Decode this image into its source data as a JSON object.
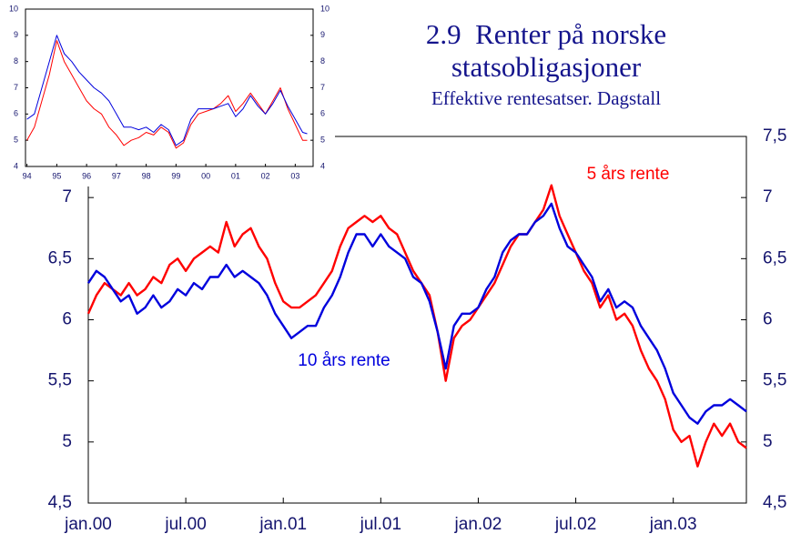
{
  "chart_data": [
    {
      "type": "line",
      "title": "2.9  Renter på norske statsobligasjoner",
      "subtitle": "Effektive rentesatser. Dagstall",
      "x": [
        0,
        0.5,
        1,
        1.5,
        2,
        2.5,
        3,
        3.5,
        4,
        4.5,
        5,
        5.5,
        6,
        6.5,
        7,
        7.5,
        8,
        8.5,
        9,
        9.5,
        10,
        10.5,
        11,
        11.5,
        12,
        12.5,
        13,
        13.5,
        14,
        14.5,
        15,
        15.5,
        16,
        16.5,
        17,
        17.5,
        18,
        18.5,
        19,
        19.5,
        20,
        20.5,
        21,
        21.5,
        22,
        22.5,
        23,
        23.5,
        24,
        24.5,
        25,
        25.5,
        26,
        26.5,
        27,
        27.5,
        28,
        28.5,
        29,
        29.5,
        30,
        30.5,
        31,
        31.5,
        32,
        32.5,
        33,
        33.5,
        34,
        34.5,
        35,
        35.5,
        36,
        36.5,
        37,
        37.5,
        38,
        38.5,
        39,
        39.5,
        40,
        40.5
      ],
      "series": [
        {
          "name": "5 års rente",
          "color": "#ff0000",
          "values": [
            6.05,
            6.2,
            6.3,
            6.25,
            6.2,
            6.3,
            6.2,
            6.25,
            6.35,
            6.3,
            6.45,
            6.5,
            6.4,
            6.5,
            6.55,
            6.6,
            6.55,
            6.8,
            6.6,
            6.7,
            6.75,
            6.6,
            6.5,
            6.3,
            6.15,
            6.1,
            6.1,
            6.15,
            6.2,
            6.3,
            6.4,
            6.6,
            6.75,
            6.8,
            6.85,
            6.8,
            6.85,
            6.75,
            6.7,
            6.55,
            6.4,
            6.3,
            6.2,
            5.9,
            5.5,
            5.85,
            5.95,
            6.0,
            6.1,
            6.2,
            6.3,
            6.45,
            6.6,
            6.7,
            6.7,
            6.8,
            6.9,
            7.1,
            6.85,
            6.7,
            6.55,
            6.4,
            6.3,
            6.1,
            6.2,
            6.0,
            6.05,
            5.95,
            5.75,
            5.6,
            5.5,
            5.35,
            5.1,
            5.0,
            5.05,
            4.8,
            5.0,
            5.15,
            5.05,
            5.15,
            5.0,
            4.95
          ]
        },
        {
          "name": "10 års rente",
          "color": "#0000dd",
          "values": [
            6.3,
            6.4,
            6.35,
            6.25,
            6.15,
            6.2,
            6.05,
            6.1,
            6.2,
            6.1,
            6.15,
            6.25,
            6.2,
            6.3,
            6.25,
            6.35,
            6.35,
            6.45,
            6.35,
            6.4,
            6.35,
            6.3,
            6.2,
            6.05,
            5.95,
            5.85,
            5.9,
            5.95,
            5.95,
            6.1,
            6.2,
            6.35,
            6.55,
            6.7,
            6.7,
            6.6,
            6.7,
            6.6,
            6.55,
            6.5,
            6.35,
            6.3,
            6.15,
            5.9,
            5.6,
            5.95,
            6.05,
            6.05,
            6.1,
            6.25,
            6.35,
            6.55,
            6.65,
            6.7,
            6.7,
            6.8,
            6.85,
            6.95,
            6.75,
            6.6,
            6.55,
            6.45,
            6.35,
            6.15,
            6.25,
            6.1,
            6.15,
            6.1,
            5.95,
            5.85,
            5.75,
            5.6,
            5.4,
            5.3,
            5.2,
            5.15,
            5.25,
            5.3,
            5.3,
            5.35,
            5.3,
            5.25
          ]
        }
      ],
      "xlim": [
        0,
        40.5
      ],
      "xticks": [
        {
          "value": 0,
          "label": "jan.00"
        },
        {
          "value": 6,
          "label": "jul.00"
        },
        {
          "value": 12,
          "label": "jan.01"
        },
        {
          "value": 18,
          "label": "jul.01"
        },
        {
          "value": 24,
          "label": "jan.02"
        },
        {
          "value": 30,
          "label": "jul.02"
        },
        {
          "value": 36,
          "label": "jan.03"
        }
      ],
      "ylim": [
        4.5,
        7.5
      ],
      "yticks": [
        {
          "value": 4.5,
          "label": "4,5"
        },
        5,
        {
          "value": 5.5,
          "label": "5,5"
        },
        6,
        {
          "value": 6.5,
          "label": "6,5"
        },
        7
      ],
      "y2lim": [
        4.5,
        7.5
      ],
      "y2ticks": [
        {
          "value": 4.5,
          "label": "4,5"
        },
        5,
        {
          "value": 5.5,
          "label": "5,5"
        },
        6,
        {
          "value": 6.5,
          "label": "6,5"
        },
        7,
        {
          "value": 7.5,
          "label": "7,5"
        }
      ],
      "annotations": [
        "5 års rente",
        "10 års rente"
      ]
    },
    {
      "type": "line",
      "x": [
        1994,
        1994.25,
        1994.5,
        1994.75,
        1995,
        1995.25,
        1995.5,
        1995.75,
        1996,
        1996.25,
        1996.5,
        1996.75,
        1997,
        1997.25,
        1997.5,
        1997.75,
        1998,
        1998.25,
        1998.5,
        1998.75,
        1999,
        1999.25,
        1999.5,
        1999.75,
        2000,
        2000.25,
        2000.5,
        2000.75,
        2001,
        2001.25,
        2001.5,
        2001.75,
        2002,
        2002.25,
        2002.5,
        2002.75,
        2003,
        2003.25,
        2003.4
      ],
      "series": [
        {
          "name": "5 års rente",
          "color": "#ff0000",
          "values": [
            5.0,
            5.5,
            6.5,
            7.5,
            8.8,
            8.0,
            7.5,
            7.0,
            6.5,
            6.2,
            6.0,
            5.5,
            5.2,
            4.8,
            5.0,
            5.1,
            5.3,
            5.2,
            5.5,
            5.3,
            4.7,
            4.9,
            5.6,
            6.0,
            6.1,
            6.2,
            6.4,
            6.7,
            6.1,
            6.4,
            6.8,
            6.4,
            6.0,
            6.5,
            7.0,
            6.2,
            5.6,
            5.0,
            5.0
          ]
        },
        {
          "name": "10 års rente",
          "color": "#0000dd",
          "values": [
            5.8,
            6.0,
            7.0,
            8.0,
            9.0,
            8.3,
            8.0,
            7.6,
            7.3,
            7.0,
            6.8,
            6.5,
            6.0,
            5.5,
            5.5,
            5.4,
            5.5,
            5.3,
            5.6,
            5.4,
            4.8,
            5.0,
            5.8,
            6.2,
            6.2,
            6.2,
            6.3,
            6.4,
            5.9,
            6.2,
            6.7,
            6.3,
            6.0,
            6.4,
            6.9,
            6.3,
            5.8,
            5.3,
            5.25
          ]
        }
      ],
      "xlim": [
        1993.95,
        2003.6
      ],
      "xticks": [
        {
          "value": 1994,
          "label": "94"
        },
        {
          "value": 1995,
          "label": "95"
        },
        {
          "value": 1996,
          "label": "96"
        },
        {
          "value": 1997,
          "label": "97"
        },
        {
          "value": 1998,
          "label": "98"
        },
        {
          "value": 1999,
          "label": "99"
        },
        {
          "value": 2000,
          "label": "00"
        },
        {
          "value": 2001,
          "label": "01"
        },
        {
          "value": 2002,
          "label": "02"
        },
        {
          "value": 2003,
          "label": "03"
        }
      ],
      "ylim": [
        4,
        10
      ],
      "yticks": [
        4,
        5,
        6,
        7,
        8,
        9,
        10
      ],
      "y2lim": [
        4,
        10
      ],
      "y2ticks": [
        4,
        5,
        6,
        7,
        8,
        9,
        10
      ]
    }
  ]
}
